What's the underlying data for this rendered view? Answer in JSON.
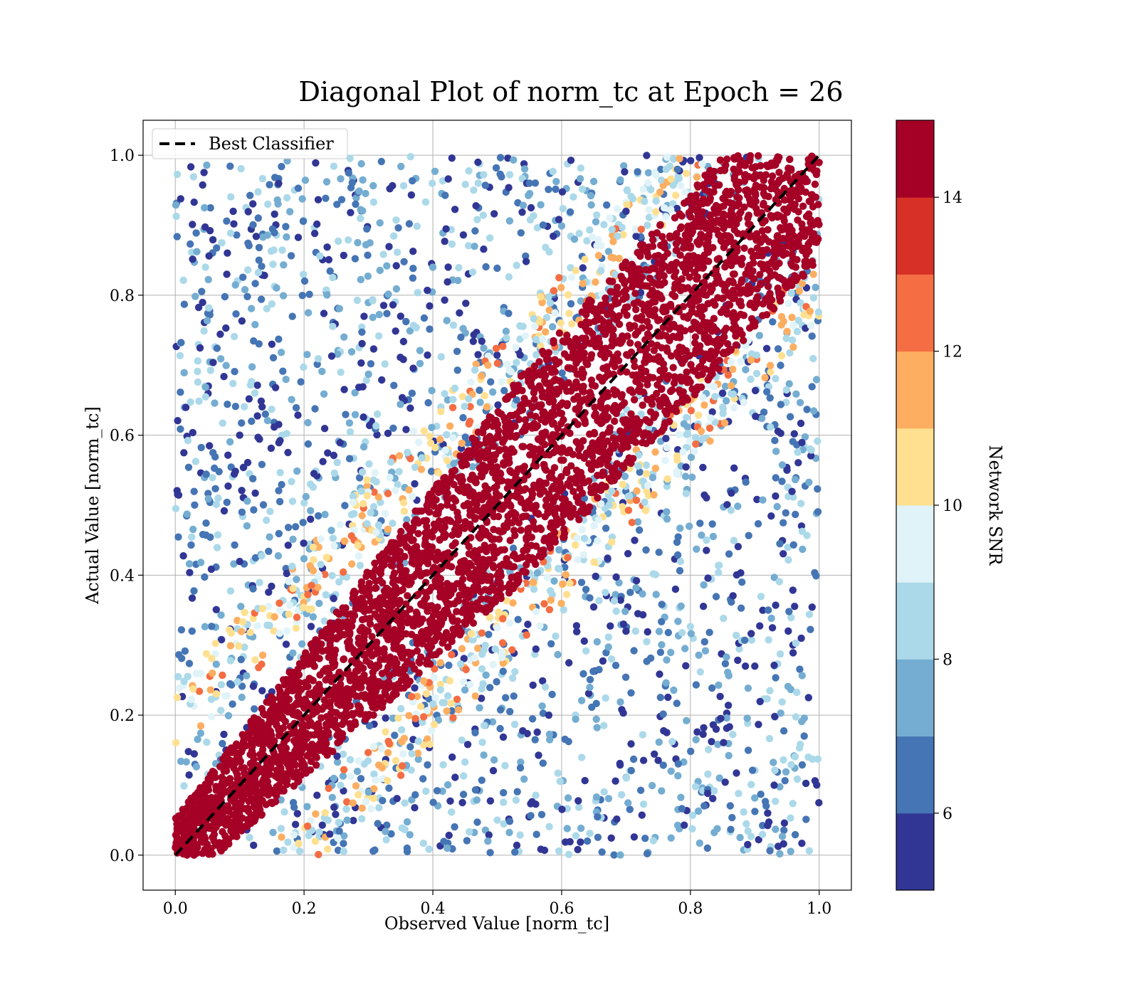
{
  "chart_data": {
    "type": "scatter",
    "title": "Diagonal Plot of norm_tc at Epoch = 26",
    "xlabel": "Observed Value [norm_tc]",
    "ylabel": "Actual Value [norm_tc]",
    "xlim": [
      -0.05,
      1.05
    ],
    "ylim": [
      -0.05,
      1.05
    ],
    "xticks": [
      0.0,
      0.2,
      0.4,
      0.6,
      0.8,
      1.0
    ],
    "yticks": [
      0.0,
      0.2,
      0.4,
      0.6,
      0.8,
      1.0
    ],
    "xtick_labels": [
      "0.0",
      "0.2",
      "0.4",
      "0.6",
      "0.8",
      "1.0"
    ],
    "ytick_labels": [
      "0.0",
      "0.2",
      "0.4",
      "0.6",
      "0.8",
      "1.0"
    ],
    "grid": true,
    "legend": {
      "placement": "upper-left",
      "entries": [
        {
          "label": "Best Classifier",
          "style": "dashed",
          "color": "#000000"
        }
      ]
    },
    "reference_line": {
      "name": "Best Classifier",
      "x": [
        0.0,
        1.0
      ],
      "y": [
        0.0,
        1.0
      ]
    },
    "colorbar": {
      "label": "Network SNR",
      "range": [
        5,
        15
      ],
      "ticks": [
        6,
        8,
        10,
        12,
        14
      ],
      "tick_labels": [
        "6",
        "8",
        "10",
        "12",
        "14"
      ],
      "colors": [
        "#313695",
        "#4575b4",
        "#74add1",
        "#abd9e9",
        "#e0f3f8",
        "#fee090",
        "#fdae61",
        "#f46d43",
        "#d73027",
        "#a50026"
      ],
      "bins": 10
    },
    "point_description": {
      "diagonal_band_halfwidth_at_high_snr": 0.15,
      "band_halfwidth_at_moderate_snr": 0.18,
      "low_snr_points_spread_over_unit_square": true
    },
    "sample_points": {
      "x": [
        0.08,
        0.09,
        0.1,
        0.13,
        0.15,
        0.21,
        0.28,
        0.35,
        0.4,
        0.47,
        0.55,
        0.62,
        0.7,
        0.78,
        0.85,
        0.9,
        0.93,
        0.95,
        0.92,
        0.88,
        0.84,
        0.77,
        0.7,
        0.64,
        0.58,
        0.5,
        0.43,
        0.36,
        0.3,
        0.24
      ],
      "y": [
        0.83,
        0.92,
        0.6,
        0.85,
        0.73,
        0.48,
        0.93,
        0.77,
        0.84,
        0.99,
        0.96,
        0.88,
        0.92,
        0.98,
        0.66,
        0.27,
        0.1,
        0.55,
        0.06,
        0.39,
        0.18,
        0.12,
        0.32,
        0.02,
        0.2,
        0.05,
        0.14,
        0.01,
        0.09,
        0.03
      ],
      "snr": [
        5.5,
        5.5,
        5.5,
        6.5,
        5.5,
        5.5,
        6.5,
        5.5,
        7.5,
        5.5,
        6.5,
        7.5,
        5.5,
        6.5,
        5.5,
        5.5,
        5.5,
        5.5,
        5.5,
        6.5,
        5.5,
        7.5,
        5.5,
        6.5,
        5.5,
        8.5,
        5.5,
        6.5,
        7.5,
        5.5
      ]
    }
  }
}
